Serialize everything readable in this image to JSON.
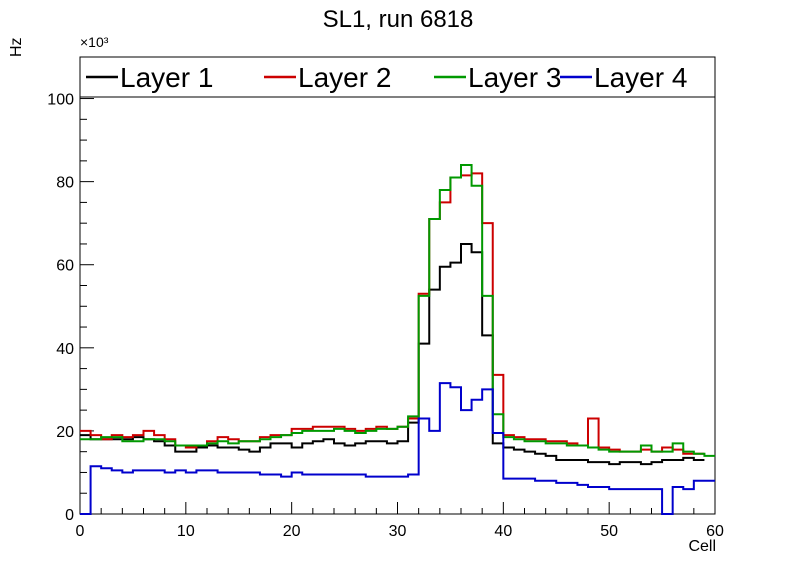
{
  "chart_data": {
    "type": "line",
    "title": "SL1, run 6818",
    "xlabel": "Cell",
    "ylabel": "Hz",
    "y_scale_label": "×10³",
    "xlim": [
      0,
      60
    ],
    "ylim": [
      0,
      110
    ],
    "x_ticks": [
      0,
      10,
      20,
      30,
      40,
      50,
      60
    ],
    "y_ticks": [
      0,
      20,
      40,
      60,
      80,
      100
    ],
    "legend_position": "top",
    "grid": false,
    "bin_width": 1,
    "series": [
      {
        "name": "Layer 1",
        "color": "#000000",
        "values": [
          19,
          18,
          18,
          18,
          18,
          18.5,
          18,
          17.5,
          16.5,
          15,
          15,
          16,
          16.5,
          16,
          16,
          15.5,
          15,
          16,
          17,
          17,
          16,
          17,
          17.5,
          18,
          17,
          16.5,
          17,
          17.5,
          17.5,
          17,
          17.5,
          22,
          41,
          54,
          59.5,
          60.5,
          65,
          63,
          43,
          17,
          16,
          15.5,
          15,
          14.5,
          14,
          13,
          13,
          13,
          12.5,
          12.5,
          12,
          12.5,
          12.5,
          12,
          12.5,
          13,
          13,
          13.5,
          13,
          null
        ]
      },
      {
        "name": "Layer 2",
        "color": "#cc0000",
        "values": [
          20,
          19,
          18,
          19,
          18.5,
          19,
          20,
          19,
          18,
          16.5,
          16,
          16.5,
          17.5,
          18.5,
          18,
          17.5,
          17.5,
          18.5,
          19,
          19,
          20.5,
          20.5,
          21,
          21,
          21,
          20.5,
          20,
          20.5,
          21,
          20.5,
          21,
          23,
          53,
          71,
          75,
          81,
          81.5,
          82,
          70,
          33.5,
          19,
          18.5,
          18,
          18,
          17.5,
          17.5,
          17,
          16.5,
          23,
          16,
          15.5,
          15,
          15,
          15.5,
          15,
          16,
          15.5,
          14.5,
          14.5,
          null
        ]
      },
      {
        "name": "Layer 3",
        "color": "#009900",
        "values": [
          18,
          18,
          18.5,
          18.5,
          17.5,
          17.5,
          18,
          18,
          17.5,
          16.5,
          16.5,
          16.5,
          17,
          17.5,
          17,
          17.5,
          17.5,
          18,
          18.5,
          19,
          19.5,
          20,
          20,
          20,
          20.5,
          20,
          19.5,
          20,
          20.5,
          20.5,
          21,
          23.5,
          52.5,
          71,
          78,
          81,
          84,
          79,
          52.5,
          24,
          18.5,
          18,
          17.5,
          17.5,
          17,
          17,
          16.5,
          16.5,
          16,
          15.5,
          15,
          15,
          15,
          16.5,
          15,
          15,
          17,
          15,
          14.5,
          14
        ]
      },
      {
        "name": "Layer 4",
        "color": "#0000cc",
        "values": [
          0,
          11.5,
          11,
          10.5,
          10,
          10.5,
          10.5,
          10.5,
          10,
          10.5,
          10,
          10.5,
          10.5,
          10,
          10,
          10,
          10,
          9.5,
          9.5,
          9,
          10,
          9.5,
          9.5,
          9.5,
          9.5,
          9.5,
          9.5,
          9,
          9,
          9,
          9,
          9.5,
          23,
          20,
          31.5,
          30.5,
          25,
          27.5,
          30,
          19.5,
          8.5,
          8.5,
          8.5,
          8,
          8,
          7.5,
          7.5,
          7,
          6.5,
          6.5,
          6,
          6,
          6,
          6,
          6,
          0,
          6.5,
          6,
          8,
          8
        ]
      }
    ]
  }
}
